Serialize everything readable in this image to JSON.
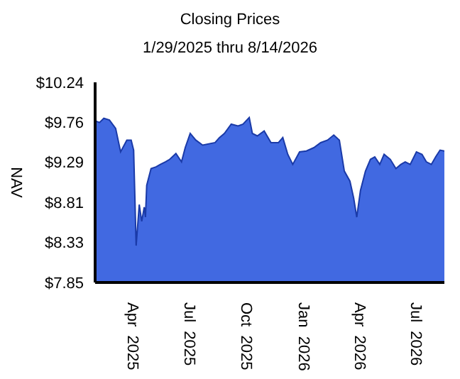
{
  "chart_data": {
    "type": "area",
    "title": "Closing Prices",
    "subtitle": "1/29/2025 thru 8/14/2026",
    "ylabel": "NAV",
    "x": [
      "2025-01-29",
      "2025-02-05",
      "2025-02-12",
      "2025-02-21",
      "2025-03-03",
      "2025-03-11",
      "2025-03-21",
      "2025-03-28",
      "2025-04-01",
      "2025-04-05",
      "2025-04-10",
      "2025-04-14",
      "2025-04-18",
      "2025-04-20",
      "2025-04-22",
      "2025-04-29",
      "2025-05-07",
      "2025-05-14",
      "2025-05-22",
      "2025-05-29",
      "2025-06-08",
      "2025-06-17",
      "2025-06-23",
      "2025-07-01",
      "2025-07-10",
      "2025-07-21",
      "2025-08-10",
      "2025-08-17",
      "2025-08-25",
      "2025-09-05",
      "2025-09-16",
      "2025-09-24",
      "2025-10-04",
      "2025-10-09",
      "2025-10-17",
      "2025-10-28",
      "2025-11-08",
      "2025-11-20",
      "2025-11-27",
      "2025-12-05",
      "2025-12-13",
      "2025-12-24",
      "2026-01-04",
      "2026-01-16",
      "2026-01-27",
      "2026-02-07",
      "2026-02-17",
      "2026-02-26",
      "2026-03-06",
      "2026-03-15",
      "2026-03-21",
      "2026-03-26",
      "2026-04-01",
      "2026-04-09",
      "2026-04-17",
      "2026-04-24",
      "2026-05-02",
      "2026-05-09",
      "2026-05-19",
      "2026-05-28",
      "2026-06-05",
      "2026-06-12",
      "2026-06-20",
      "2026-06-30",
      "2026-07-09",
      "2026-07-16",
      "2026-07-24",
      "2026-07-31",
      "2026-08-07",
      "2026-08-14"
    ],
    "series": [
      {
        "color": "#4169e1",
        "values": [
          9.78,
          9.76,
          9.81,
          9.79,
          9.69,
          9.41,
          9.55,
          9.55,
          9.43,
          8.29,
          8.78,
          8.58,
          8.75,
          8.63,
          9.01,
          9.21,
          9.23,
          9.26,
          9.29,
          9.32,
          9.39,
          9.29,
          9.46,
          9.63,
          9.55,
          9.49,
          9.52,
          9.58,
          9.63,
          9.74,
          9.72,
          9.74,
          9.82,
          9.63,
          9.6,
          9.66,
          9.52,
          9.52,
          9.58,
          9.38,
          9.26,
          9.41,
          9.42,
          9.46,
          9.52,
          9.55,
          9.61,
          9.55,
          9.18,
          9.06,
          8.86,
          8.63,
          8.95,
          9.18,
          9.32,
          9.35,
          9.26,
          9.38,
          9.32,
          9.21,
          9.26,
          9.29,
          9.26,
          9.41,
          9.38,
          9.29,
          9.26,
          9.35,
          9.43,
          9.42
        ]
      }
    ],
    "xlim": [
      "2025-01-29",
      "2026-08-14"
    ],
    "xticks": [
      {
        "value": "2025-04-01",
        "label": "Apr  2025"
      },
      {
        "value": "2025-07-01",
        "label": "Jul  2025"
      },
      {
        "value": "2025-10-01",
        "label": "Oct  2025"
      },
      {
        "value": "2026-01-01",
        "label": "Jan  2026"
      },
      {
        "value": "2026-04-01",
        "label": "Apr  2026"
      },
      {
        "value": "2026-07-01",
        "label": "Jul  2026"
      }
    ],
    "ylim": [
      7.85,
      10.24
    ],
    "yticks": [
      {
        "value": 7.85,
        "label": "$7.85"
      },
      {
        "value": 8.33,
        "label": "$8.33"
      },
      {
        "value": 8.81,
        "label": "$8.81"
      },
      {
        "value": 9.29,
        "label": "$9.29"
      },
      {
        "value": 9.76,
        "label": "$9.76"
      },
      {
        "value": 10.24,
        "label": "$10.24"
      }
    ],
    "grid": false,
    "legend": false
  }
}
